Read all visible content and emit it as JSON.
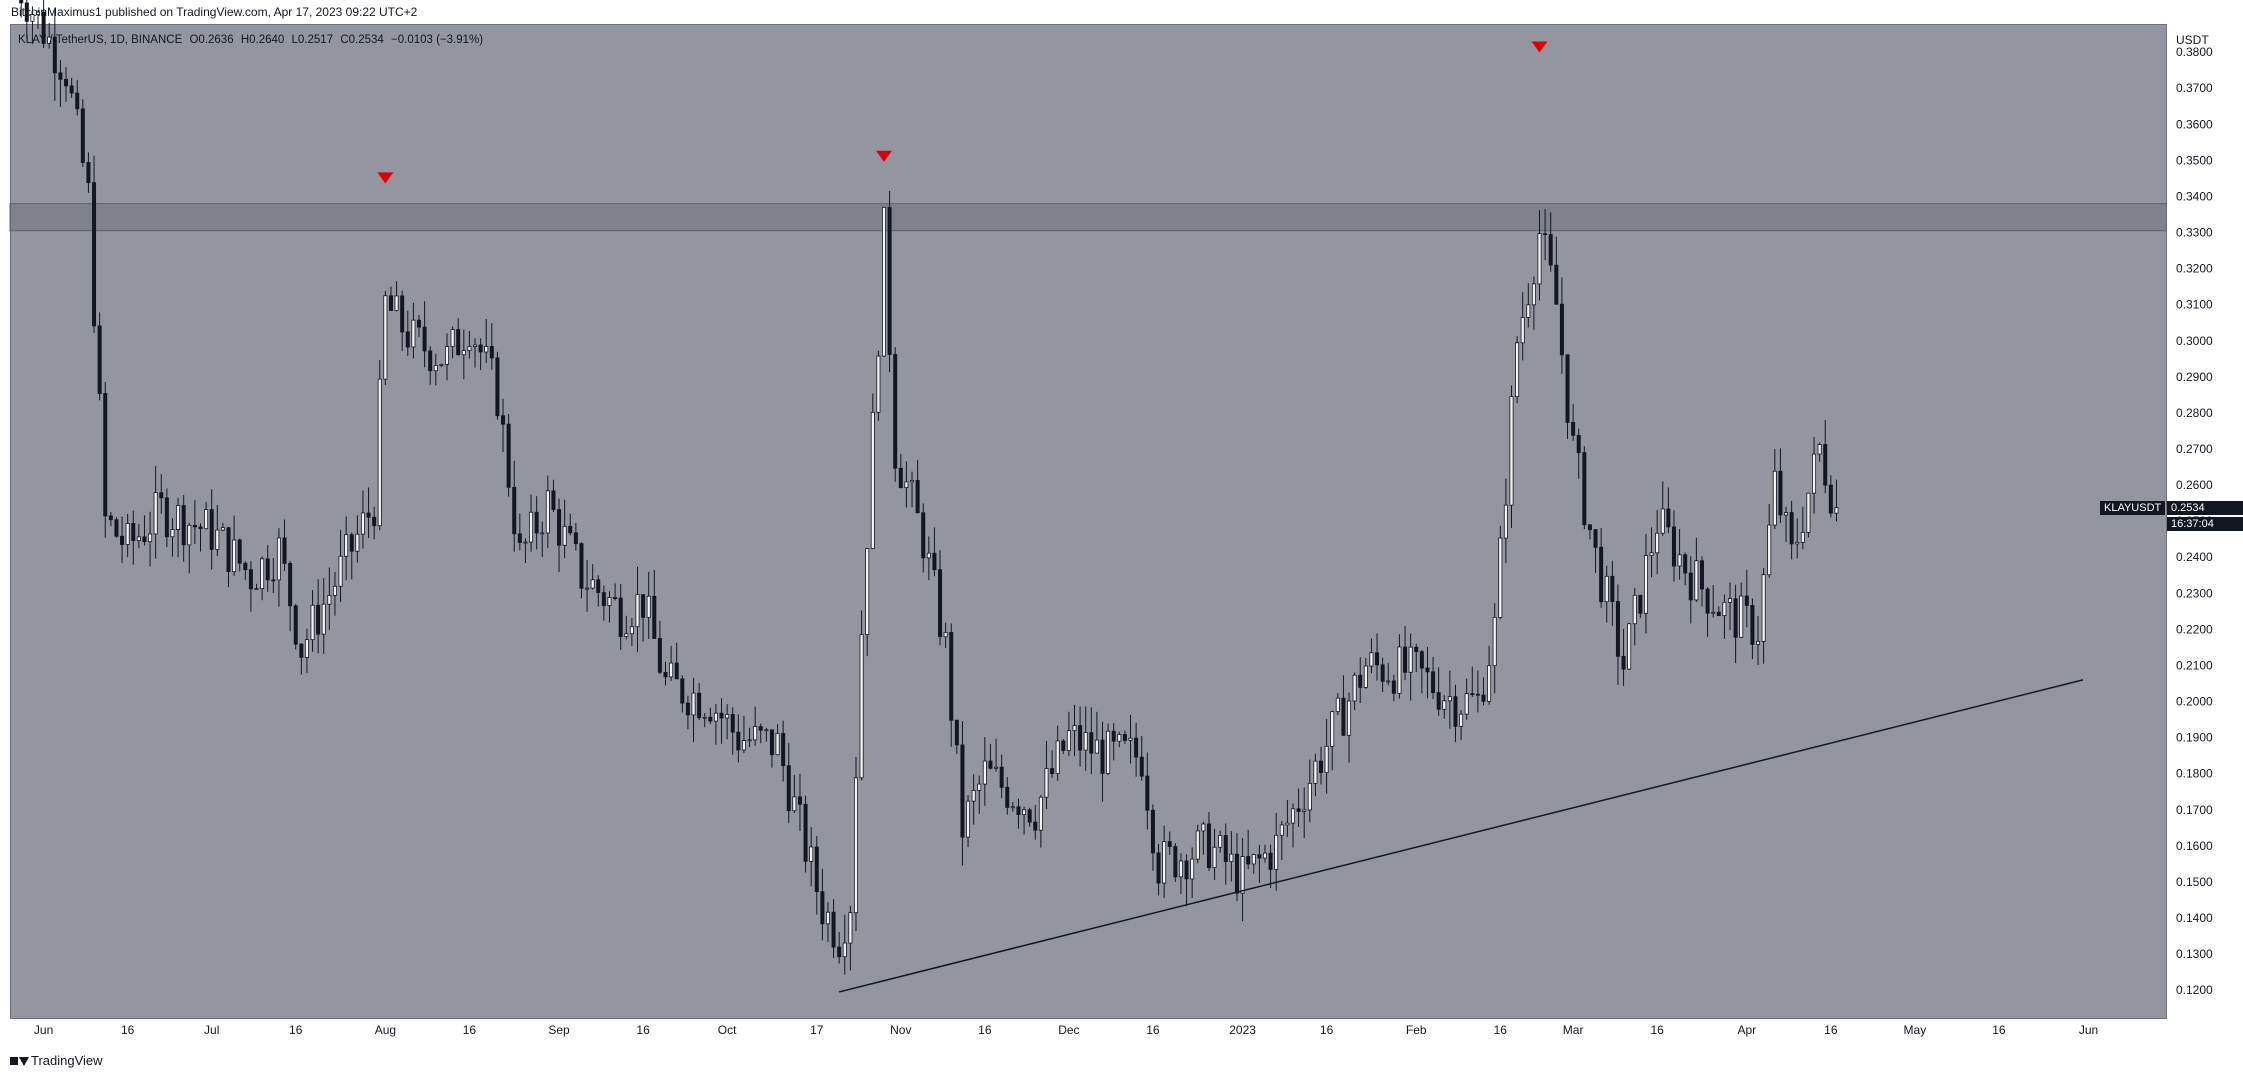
{
  "header": {
    "publisher_text": "BitcoinMaximus1 published on TradingView.com, Apr 17, 2023 09:22 UTC+2"
  },
  "legend": {
    "symbol": "KLAY / TetherUS, 1D, BINANCE",
    "open_label": "O",
    "open": "0.2636",
    "high_label": "H",
    "high": "0.2640",
    "low_label": "L",
    "low": "0.2517",
    "close_label": "C",
    "close": "0.2534",
    "change": "−0.0103 (−3.91%)"
  },
  "price_badge": {
    "symbol": "KLAYUSDT",
    "price": "0.2534",
    "countdown": "16:37:04"
  },
  "footer": {
    "brand": "TradingView"
  },
  "colors": {
    "background": "#93959f",
    "candle": "#131722",
    "zone": "#6f717a",
    "marker": "#e00000"
  },
  "chart_data": {
    "type": "candlestick",
    "title": "KLAY / TetherUS, 1D, BINANCE",
    "ylabel": "USDT",
    "ylim": [
      0.112,
      0.3878
    ],
    "y_ticks": [
      "0.1200",
      "0.1300",
      "0.1400",
      "0.1500",
      "0.1600",
      "0.1700",
      "0.1800",
      "0.1900",
      "0.2000",
      "0.2100",
      "0.2200",
      "0.2300",
      "0.2400",
      "0.2500",
      "0.2600",
      "0.2700",
      "0.2800",
      "0.2900",
      "0.3000",
      "0.3100",
      "0.3200",
      "0.3300",
      "0.3400",
      "0.3500",
      "0.3600",
      "0.3700",
      "0.3800"
    ],
    "x_ticks": [
      {
        "label": "Jun",
        "date": "2022-06-01"
      },
      {
        "label": "16",
        "date": "2022-06-16"
      },
      {
        "label": "Jul",
        "date": "2022-07-01"
      },
      {
        "label": "16",
        "date": "2022-07-16"
      },
      {
        "label": "Aug",
        "date": "2022-08-01"
      },
      {
        "label": "16",
        "date": "2022-08-16"
      },
      {
        "label": "Sep",
        "date": "2022-09-01"
      },
      {
        "label": "16",
        "date": "2022-09-16"
      },
      {
        "label": "Oct",
        "date": "2022-10-01"
      },
      {
        "label": "17",
        "date": "2022-10-17"
      },
      {
        "label": "Nov",
        "date": "2022-11-01"
      },
      {
        "label": "16",
        "date": "2022-11-16"
      },
      {
        "label": "Dec",
        "date": "2022-12-01"
      },
      {
        "label": "16",
        "date": "2022-12-16"
      },
      {
        "label": "2023",
        "date": "2023-01-01"
      },
      {
        "label": "16",
        "date": "2023-01-16"
      },
      {
        "label": "Feb",
        "date": "2023-02-01"
      },
      {
        "label": "16",
        "date": "2023-02-16"
      },
      {
        "label": "Mar",
        "date": "2023-03-01"
      },
      {
        "label": "16",
        "date": "2023-03-16"
      },
      {
        "label": "Apr",
        "date": "2023-04-01"
      },
      {
        "label": "16",
        "date": "2023-04-16"
      },
      {
        "label": "May",
        "date": "2023-05-01"
      },
      {
        "label": "16",
        "date": "2023-05-16"
      },
      {
        "label": "Jun",
        "date": "2023-06-01"
      }
    ],
    "xlim": [
      "2022-05-26",
      "2023-06-15"
    ],
    "price_path": [
      [
        "2022-05-27",
        0.4
      ],
      [
        "2022-06-05",
        0.375
      ],
      [
        "2022-06-09",
        0.34
      ],
      [
        "2022-06-12",
        0.25
      ],
      [
        "2022-06-16",
        0.243
      ],
      [
        "2022-06-22",
        0.253
      ],
      [
        "2022-07-01",
        0.247
      ],
      [
        "2022-07-08",
        0.235
      ],
      [
        "2022-07-13",
        0.242
      ],
      [
        "2022-07-17",
        0.215
      ],
      [
        "2022-07-22",
        0.23
      ],
      [
        "2022-07-30",
        0.255
      ],
      [
        "2022-08-01",
        0.31
      ],
      [
        "2022-08-06",
        0.3
      ],
      [
        "2022-08-12",
        0.295
      ],
      [
        "2022-08-16",
        0.305
      ],
      [
        "2022-08-21",
        0.285
      ],
      [
        "2022-08-25",
        0.24
      ],
      [
        "2022-08-30",
        0.255
      ],
      [
        "2022-09-05",
        0.235
      ],
      [
        "2022-09-12",
        0.225
      ],
      [
        "2022-09-16",
        0.228
      ],
      [
        "2022-09-20",
        0.205
      ],
      [
        "2022-09-28",
        0.2
      ],
      [
        "2022-10-03",
        0.19
      ],
      [
        "2022-10-10",
        0.188
      ],
      [
        "2022-10-14",
        0.165
      ],
      [
        "2022-10-18",
        0.143
      ],
      [
        "2022-10-21",
        0.135
      ],
      [
        "2022-10-23",
        0.145
      ],
      [
        "2022-10-25",
        0.22
      ],
      [
        "2022-10-29",
        0.33
      ],
      [
        "2022-10-31",
        0.27
      ],
      [
        "2022-11-05",
        0.245
      ],
      [
        "2022-11-09",
        0.215
      ],
      [
        "2022-11-12",
        0.165
      ],
      [
        "2022-11-16",
        0.18
      ],
      [
        "2022-11-25",
        0.17
      ],
      [
        "2022-12-01",
        0.19
      ],
      [
        "2022-12-08",
        0.185
      ],
      [
        "2022-12-14",
        0.185
      ],
      [
        "2022-12-17",
        0.155
      ],
      [
        "2022-12-26",
        0.16
      ],
      [
        "2023-01-01",
        0.151
      ],
      [
        "2023-01-07",
        0.16
      ],
      [
        "2023-01-16",
        0.188
      ],
      [
        "2023-01-23",
        0.21
      ],
      [
        "2023-02-01",
        0.208
      ],
      [
        "2023-02-08",
        0.2
      ],
      [
        "2023-02-12",
        0.2
      ],
      [
        "2023-02-15",
        0.22
      ],
      [
        "2023-02-19",
        0.3
      ],
      [
        "2023-02-23",
        0.33
      ],
      [
        "2023-02-26",
        0.31
      ],
      [
        "2023-03-01",
        0.27
      ],
      [
        "2023-03-05",
        0.24
      ],
      [
        "2023-03-10",
        0.21
      ],
      [
        "2023-03-16",
        0.25
      ],
      [
        "2023-03-22",
        0.235
      ],
      [
        "2023-03-28",
        0.225
      ],
      [
        "2023-04-03",
        0.22
      ],
      [
        "2023-04-06",
        0.26
      ],
      [
        "2023-04-09",
        0.24
      ],
      [
        "2023-04-14",
        0.27
      ],
      [
        "2023-04-17",
        0.2534
      ]
    ],
    "resistance_zone": [
      0.3305,
      0.338
    ],
    "support_line": [
      [
        "2022-10-21",
        0.1195
      ],
      [
        "2023-05-31",
        0.206
      ]
    ],
    "peak_markers": [
      {
        "date": "2022-08-01",
        "value": 0.345
      },
      {
        "date": "2022-10-29",
        "value": 0.351
      },
      {
        "date": "2023-02-23",
        "value": 0.3813
      }
    ],
    "last_price": 0.2534
  }
}
